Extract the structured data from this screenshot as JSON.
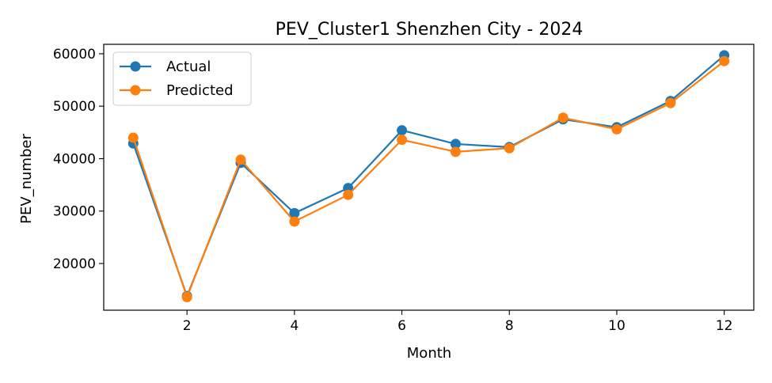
{
  "chart_data": {
    "type": "line",
    "title": "PEV_Cluster1 Shenzhen City - 2024",
    "xlabel": "Month",
    "ylabel": "PEV_number",
    "x": [
      1,
      2,
      3,
      4,
      5,
      6,
      7,
      8,
      9,
      10,
      11,
      12
    ],
    "xlim": [
      0.45,
      12.55
    ],
    "ylim": [
      11100,
      61800
    ],
    "xticks": [
      2,
      4,
      6,
      8,
      10,
      12
    ],
    "yticks": [
      20000,
      30000,
      40000,
      50000,
      60000
    ],
    "grid": false,
    "legend_position": "top-left",
    "series": [
      {
        "name": "Actual",
        "color": "#1f77b4",
        "marker": "circle",
        "values": [
          42900,
          13800,
          39200,
          29600,
          34400,
          45400,
          42800,
          42200,
          47500,
          46000,
          51000,
          59700
        ]
      },
      {
        "name": "Predicted",
        "color": "#ff7f0e",
        "marker": "circle",
        "values": [
          44000,
          13600,
          39800,
          28000,
          33100,
          43600,
          41300,
          42000,
          47800,
          45600,
          50600,
          58600
        ]
      }
    ]
  }
}
